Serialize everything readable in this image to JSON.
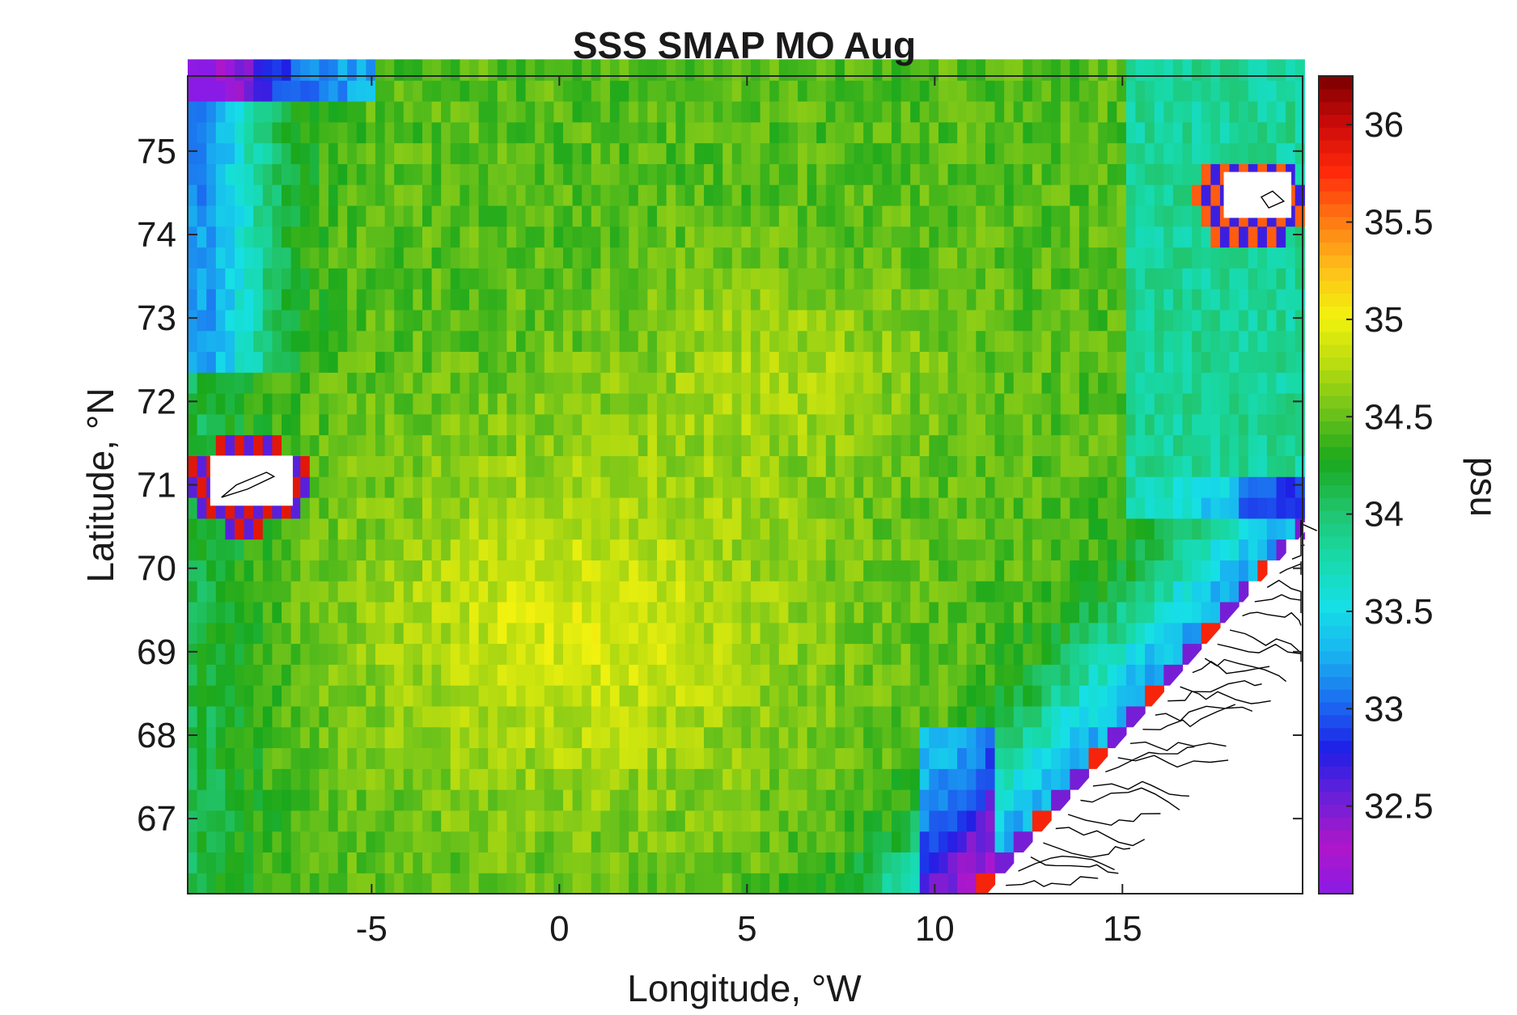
{
  "chart_data": {
    "type": "heatmap",
    "title": "SSS SMAP MO Aug",
    "xlabel": "Longitude, °W",
    "ylabel": "Latitude, °N",
    "colorbar_label": "psu",
    "xlim": [
      -9.9,
      19.8
    ],
    "ylim": [
      66.1,
      75.9
    ],
    "clim": [
      32.05,
      36.25
    ],
    "x_ticks": [
      -5,
      0,
      5,
      10,
      15
    ],
    "x_tick_labels": [
      "-5",
      "0",
      "5",
      "10",
      "15"
    ],
    "y_ticks": [
      67,
      68,
      69,
      70,
      71,
      72,
      73,
      74,
      75
    ],
    "y_tick_labels": [
      "67",
      "68",
      "69",
      "70",
      "71",
      "72",
      "73",
      "74",
      "75"
    ],
    "colorbar_ticks": [
      32.5,
      33,
      33.5,
      34,
      34.5,
      35,
      35.5,
      36
    ],
    "colorbar_tick_labels": [
      "32.5",
      "33",
      "33.5",
      "34",
      "34.5",
      "35",
      "35.5",
      "36"
    ],
    "colormap": [
      "#8a1be6",
      "#b016c8",
      "#6a20d8",
      "#1f1fe6",
      "#1c6df0",
      "#19b4f0",
      "#16e0e6",
      "#18d9a8",
      "#21c46a",
      "#1aa81c",
      "#6cc21a",
      "#b8dc10",
      "#f2f20e",
      "#ffbf1a",
      "#ff7a14",
      "#ff2a0a",
      "#cc0a0a",
      "#7a0000"
    ],
    "grid_resolution": {
      "dlon": 0.25,
      "dlat": 0.25
    },
    "land_color": "#ffffff",
    "coastline_color": "#000000",
    "regions": {
      "nw_corner_fresh": {
        "lon": [
          -9.9,
          -6.0
        ],
        "lat": [
          75.5,
          75.9
        ],
        "sss": 32.6
      },
      "west_greenland_fresh": {
        "lon": [
          -9.9,
          -8.5
        ],
        "lat": [
          72.5,
          75.5
        ],
        "sss": 33.2
      },
      "central_norwegian_sea": {
        "lon": [
          -5.0,
          5.0
        ],
        "lat": [
          67.0,
          71.0
        ],
        "sss": 34.9
      },
      "north_interior": {
        "lon": [
          -5.0,
          15.0
        ],
        "lat": [
          72.5,
          75.5
        ],
        "sss": 34.4
      },
      "norwegian_coastal_current": {
        "lon": [
          9.5,
          12.5
        ],
        "lat": [
          66.1,
          68.0
        ],
        "sss": 33.1
      },
      "jan_mayen_halo": {
        "lon": [
          -9.9,
          -6.8
        ],
        "lat": [
          70.4,
          71.5
        ],
        "sss": 33.0
      },
      "bear_island_halo": {
        "lon": [
          16.9,
          19.8
        ],
        "lat": [
          73.8,
          75.0
        ],
        "sss": 33.0
      }
    }
  }
}
